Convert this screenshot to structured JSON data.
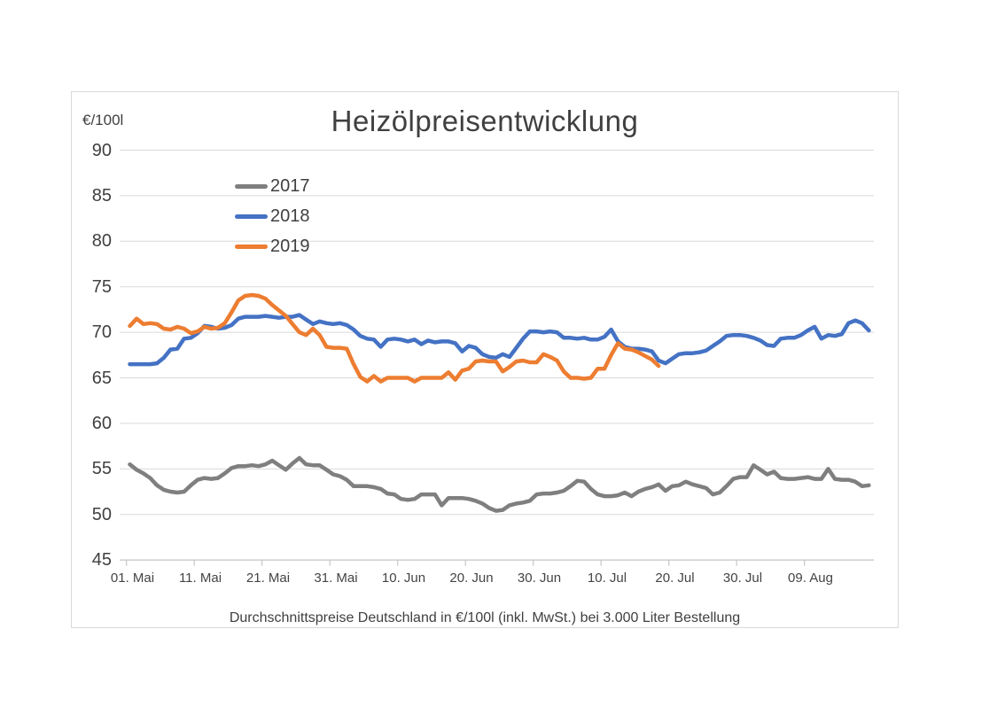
{
  "panel": {
    "background": "#ffffff",
    "border_color": "#d9d9d9",
    "gridline_color": "#d9d9d9",
    "axis_line_color": "#c6c6c6",
    "text_color": "#404040"
  },
  "header": {
    "title": "Heizölpreisentwicklung",
    "unit_label": "€/100l"
  },
  "legend": {
    "position": "top-left",
    "items": [
      {
        "label": "2017",
        "color": "#7f7f7f"
      },
      {
        "label": "2018",
        "color": "#4472c4"
      },
      {
        "label": "2019",
        "color": "#ed7d31"
      }
    ]
  },
  "footer": {
    "caption": "Durchschnittspreise Deutschland in €/100l (inkl. MwSt.) bei 3.000 Liter Bestellung"
  },
  "chart_data": {
    "type": "line",
    "title": "Heizölpreisentwicklung",
    "ylabel": "€/100l",
    "xlabel": "",
    "ylim": [
      45,
      90
    ],
    "y_ticks": [
      90,
      85,
      80,
      75,
      70,
      65,
      60,
      55,
      50,
      45
    ],
    "grid": true,
    "x_start_label": "01. Mai",
    "x_step_days": 1,
    "x_tick_labels": [
      "01. Mai",
      "11. Mai",
      "21. Mai",
      "31. Mai",
      "10. Jun",
      "20. Jun",
      "30. Jun",
      "10. Jul",
      "20. Jul",
      "30. Jul",
      "09. Aug"
    ],
    "x_tick_days": [
      0,
      10,
      20,
      30,
      40,
      50,
      60,
      70,
      80,
      90,
      100
    ],
    "series": [
      {
        "name": "2017",
        "color": "#7f7f7f",
        "start_day": 0,
        "values": [
          55.5,
          54.9,
          54.5,
          54.0,
          53.2,
          52.7,
          52.5,
          52.4,
          52.5,
          53.2,
          53.8,
          54.0,
          53.9,
          54.0,
          54.5,
          55.1,
          55.3,
          55.3,
          55.4,
          55.3,
          55.5,
          55.9,
          55.4,
          54.9,
          55.6,
          56.2,
          55.5,
          55.4,
          55.4,
          54.9,
          54.4,
          54.2,
          53.8,
          53.1,
          53.1,
          53.1,
          53.0,
          52.8,
          52.3,
          52.2,
          51.7,
          51.6,
          51.7,
          52.2,
          52.2,
          52.2,
          51.0,
          51.8,
          51.8,
          51.8,
          51.7,
          51.5,
          51.2,
          50.7,
          50.4,
          50.5,
          51.0,
          51.2,
          51.3,
          51.5,
          52.2,
          52.3,
          52.3,
          52.4,
          52.6,
          53.1,
          53.7,
          53.6,
          52.8,
          52.2,
          52.0,
          52.0,
          52.1,
          52.4,
          52.0,
          52.5,
          52.8,
          53.0,
          53.3,
          52.6,
          53.1,
          53.2,
          53.6,
          53.3,
          53.1,
          52.9,
          52.2,
          52.4,
          53.1,
          53.9,
          54.1,
          54.1,
          55.4,
          54.9,
          54.4,
          54.7,
          54.0,
          53.9,
          53.9,
          54.0,
          54.1,
          53.9,
          53.9,
          55.0,
          53.9,
          53.8,
          53.8,
          53.6,
          53.1,
          53.2
        ]
      },
      {
        "name": "2018",
        "color": "#4472c4",
        "start_day": 0,
        "values": [
          66.5,
          66.5,
          66.5,
          66.5,
          66.6,
          67.2,
          68.1,
          68.2,
          69.3,
          69.4,
          69.9,
          70.7,
          70.6,
          70.4,
          70.5,
          70.8,
          71.5,
          71.7,
          71.7,
          71.7,
          71.8,
          71.7,
          71.6,
          71.7,
          71.7,
          71.9,
          71.4,
          70.9,
          71.2,
          71.0,
          70.9,
          71.0,
          70.8,
          70.3,
          69.6,
          69.3,
          69.2,
          68.4,
          69.2,
          69.3,
          69.2,
          69.0,
          69.2,
          68.7,
          69.1,
          68.9,
          69.0,
          69.0,
          68.8,
          67.9,
          68.5,
          68.3,
          67.6,
          67.3,
          67.2,
          67.6,
          67.3,
          68.3,
          69.3,
          70.1,
          70.1,
          70.0,
          70.1,
          70.0,
          69.4,
          69.4,
          69.3,
          69.4,
          69.2,
          69.2,
          69.5,
          70.3,
          69.0,
          68.4,
          68.2,
          68.2,
          68.1,
          67.9,
          66.9,
          66.6,
          67.1,
          67.6,
          67.7,
          67.7,
          67.8,
          68.0,
          68.5,
          69.0,
          69.6,
          69.7,
          69.7,
          69.6,
          69.4,
          69.1,
          68.6,
          68.5,
          69.3,
          69.4,
          69.4,
          69.7,
          70.2,
          70.6,
          69.3,
          69.7,
          69.6,
          69.8,
          71.0,
          71.3,
          71.0,
          70.2
        ]
      },
      {
        "name": "2019",
        "color": "#ed7d31",
        "start_day": 0,
        "values": [
          70.7,
          71.5,
          70.9,
          71.0,
          70.9,
          70.4,
          70.3,
          70.6,
          70.4,
          69.9,
          70.1,
          70.6,
          70.4,
          70.5,
          71.0,
          72.2,
          73.5,
          74.0,
          74.1,
          74.0,
          73.7,
          73.0,
          72.4,
          71.8,
          70.9,
          70.0,
          69.7,
          70.4,
          69.7,
          68.4,
          68.3,
          68.3,
          68.2,
          66.5,
          65.1,
          64.6,
          65.2,
          64.6,
          65.0,
          65.0,
          65.0,
          65.0,
          64.6,
          65.0,
          65.0,
          65.0,
          65.0,
          65.6,
          64.8,
          65.8,
          66.0,
          66.8,
          66.9,
          66.8,
          66.8,
          65.7,
          66.2,
          66.8,
          66.9,
          66.7,
          66.7,
          67.6,
          67.3,
          66.9,
          65.7,
          65.0,
          65.0,
          64.9,
          65.0,
          66.0,
          66.0,
          67.5,
          68.8,
          68.2,
          68.1,
          67.8,
          67.4,
          67.0,
          66.3
        ]
      }
    ]
  }
}
